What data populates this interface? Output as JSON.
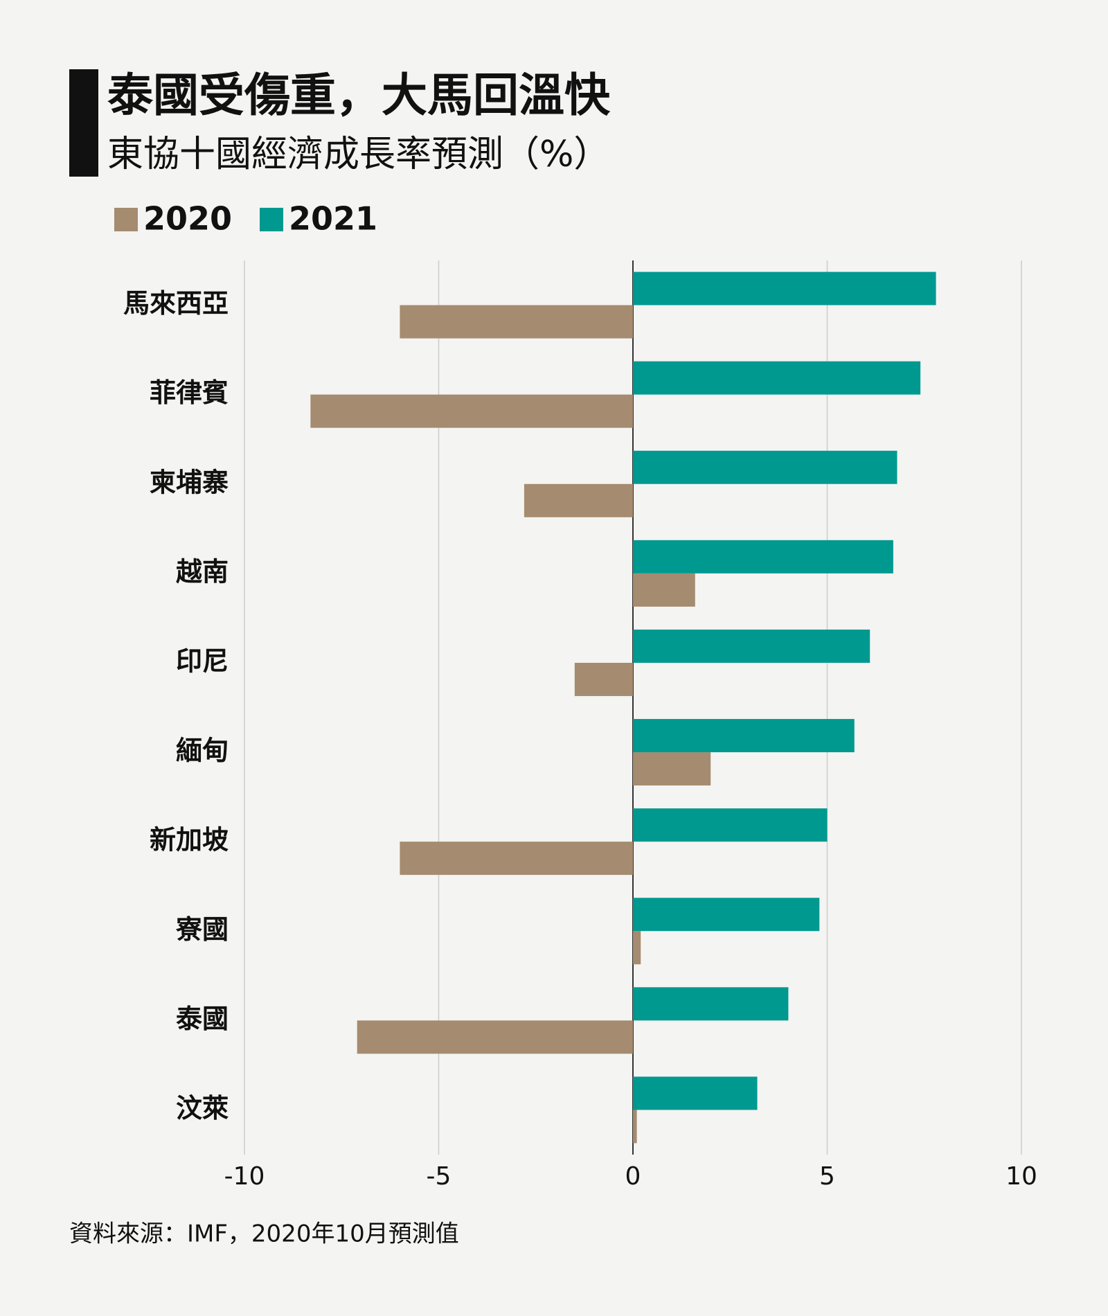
{
  "chart_data": {
    "type": "bar",
    "orientation": "horizontal",
    "title": "泰國受傷重，大馬回溫快",
    "subtitle": "東協十國經濟成長率預測（%）",
    "source": "資料來源：IMF，2020年10月預測值",
    "categories": [
      "馬來西亞",
      "菲律賓",
      "柬埔寨",
      "越南",
      "印尼",
      "緬甸",
      "新加坡",
      "寮國",
      "泰國",
      "汶萊"
    ],
    "series": [
      {
        "name": "2020",
        "color": "#a58b6f",
        "values": [
          -6.0,
          -8.3,
          -2.8,
          1.6,
          -1.5,
          2.0,
          -6.0,
          0.2,
          -7.1,
          0.1
        ]
      },
      {
        "name": "2021",
        "color": "#009990",
        "values": [
          7.8,
          7.4,
          6.8,
          6.7,
          6.1,
          5.7,
          5.0,
          4.8,
          4.0,
          3.2
        ]
      }
    ],
    "xlim": [
      -10,
      10
    ],
    "xticks": [
      -10,
      -5,
      0,
      5,
      10
    ],
    "grid": true
  }
}
